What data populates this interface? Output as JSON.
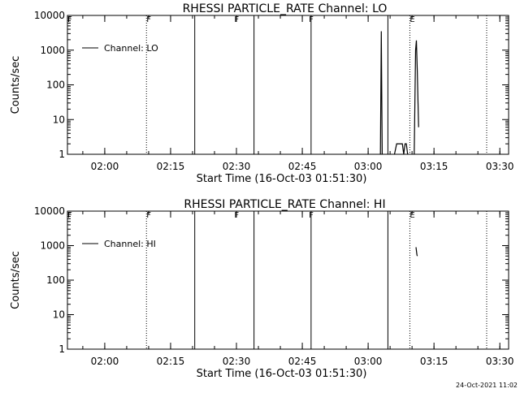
{
  "chart_data": [
    {
      "type": "line",
      "title": "RHESSI PARTICLE_RATE Channel: LO",
      "xlabel": "Start Time (16-Oct-03 01:51:30)",
      "ylabel": "Counts/sec",
      "yscale": "log",
      "ylim": [
        1,
        10000
      ],
      "xlim": [
        "01:51:30",
        "03:32:00"
      ],
      "x_ticks": [
        "02:00",
        "02:15",
        "02:30",
        "02:45",
        "03:00",
        "03:15",
        "03:30"
      ],
      "y_ticks": [
        "1",
        "10",
        "100",
        "1000",
        "10000"
      ],
      "legend": {
        "label": "Channel: LO",
        "placement": "top-left"
      },
      "solid_lines": [
        "02:20:30",
        "02:34:00",
        "02:47:00",
        "03:04:30"
      ],
      "dotted_lines": [
        "02:09:30",
        "03:09:30",
        "03:27:00"
      ],
      "flags": [
        {
          "label": "F",
          "x": "01:51:30"
        },
        {
          "label": "F",
          "x": "02:09:30"
        },
        {
          "label": "F",
          "x": "02:29:30"
        },
        {
          "label": "F",
          "x": "02:46:30"
        },
        {
          "label": "E",
          "x": "03:09:30"
        }
      ],
      "series": [
        {
          "segments": [
            [
              [
                "03:02:48",
                1
              ],
              [
                "03:03:00",
                3500
              ],
              [
                "03:03:12",
                1
              ]
            ],
            [
              [
                "03:06:00",
                1
              ],
              [
                "03:06:30",
                2
              ],
              [
                "03:07:48",
                2
              ],
              [
                "03:08:06",
                1
              ],
              [
                "03:08:24",
                2
              ],
              [
                "03:08:42",
                2
              ],
              [
                "03:09:00",
                1
              ]
            ],
            [
              [
                "03:10:30",
                1
              ],
              [
                "03:10:48",
                1000
              ],
              [
                "03:11:00",
                1900
              ],
              [
                "03:11:12",
                250
              ],
              [
                "03:11:30",
                6
              ]
            ]
          ]
        }
      ]
    },
    {
      "type": "line",
      "title": "RHESSI PARTICLE_RATE Channel: HI",
      "xlabel": "Start Time (16-Oct-03 01:51:30)",
      "ylabel": "Counts/sec",
      "yscale": "log",
      "ylim": [
        1,
        10000
      ],
      "xlim": [
        "01:51:30",
        "03:32:00"
      ],
      "x_ticks": [
        "02:00",
        "02:15",
        "02:30",
        "02:45",
        "03:00",
        "03:15",
        "03:30"
      ],
      "y_ticks": [
        "1",
        "10",
        "100",
        "1000",
        "10000"
      ],
      "legend": {
        "label": "Channel: HI",
        "placement": "top-left"
      },
      "solid_lines": [
        "02:20:30",
        "02:34:00",
        "02:47:00",
        "03:04:30"
      ],
      "dotted_lines": [
        "02:09:30",
        "03:09:30",
        "03:27:00"
      ],
      "flags": [
        {
          "label": "F",
          "x": "01:51:30"
        },
        {
          "label": "F",
          "x": "02:09:30"
        },
        {
          "label": "F",
          "x": "02:29:30"
        },
        {
          "label": "F",
          "x": "02:46:30"
        },
        {
          "label": "E",
          "x": "03:09:30"
        }
      ],
      "series": [
        {
          "segments": [
            [
              [
                "03:10:54",
                900
              ],
              [
                "03:11:06",
                550
              ],
              [
                "03:11:12",
                500
              ]
            ]
          ]
        }
      ]
    }
  ],
  "timestamp": "24-Oct-2021 11:02"
}
